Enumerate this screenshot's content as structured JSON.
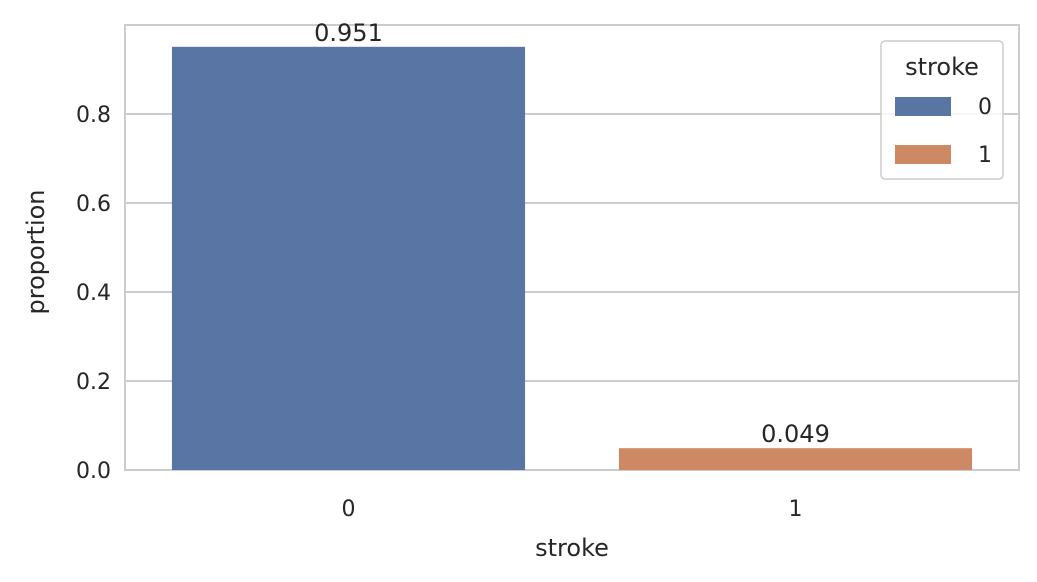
{
  "chart_data": {
    "type": "bar",
    "categories": [
      "0",
      "1"
    ],
    "values": [
      0.951,
      0.049
    ],
    "data_labels": [
      "0.951",
      "0.049"
    ],
    "xlabel": "stroke",
    "ylabel": "proportion",
    "ylim": [
      0,
      1.0
    ],
    "yticks": [
      0.0,
      0.2,
      0.4,
      0.6,
      0.8
    ],
    "ytick_labels": [
      "0.0",
      "0.2",
      "0.4",
      "0.6",
      "0.8"
    ],
    "grid": "horizontal",
    "legend": {
      "title": "stroke",
      "placement": "top-right",
      "entries": [
        {
          "label": "0",
          "color": "#5975a4"
        },
        {
          "label": "1",
          "color": "#cc8963"
        }
      ]
    },
    "colors": [
      "#5975a4",
      "#cc8963"
    ]
  }
}
